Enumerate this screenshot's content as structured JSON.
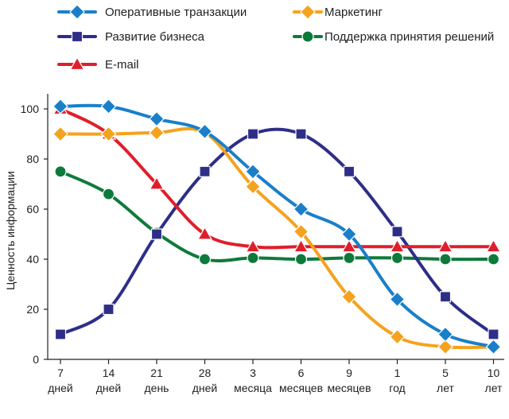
{
  "chart_data": {
    "type": "line",
    "title": "",
    "xlabel": "",
    "ylabel": "Ценность информации",
    "ylim": [
      0,
      100
    ],
    "yticks": [
      0,
      20,
      40,
      60,
      80,
      100
    ],
    "grid": false,
    "legend_position": "top",
    "categories": [
      [
        "7",
        "дней"
      ],
      [
        "14",
        "дней"
      ],
      [
        "21",
        "день"
      ],
      [
        "28",
        "дней"
      ],
      [
        "3",
        "месяца"
      ],
      [
        "6",
        "месяцев"
      ],
      [
        "9",
        "месяцев"
      ],
      [
        "1",
        "год"
      ],
      [
        "5",
        "лет"
      ],
      [
        "10",
        "лет"
      ]
    ],
    "series": [
      {
        "name": "Оперативные транзакции",
        "color": "#1a7fc9",
        "marker": "diamond",
        "values": [
          101,
          101,
          96,
          91,
          75,
          60,
          50,
          24,
          10,
          5
        ]
      },
      {
        "name": "Развитие бизнеса",
        "color": "#2e2e88",
        "marker": "square",
        "values": [
          10,
          20,
          50,
          75,
          90,
          90,
          75,
          51,
          25,
          10
        ]
      },
      {
        "name": "E-mail",
        "color": "#e01e2b",
        "marker": "triangle",
        "values": [
          100,
          90,
          70,
          50,
          45,
          45,
          45,
          45,
          45,
          45
        ]
      },
      {
        "name": "Маркетинг",
        "color": "#f5a21e",
        "marker": "diamond",
        "values": [
          90,
          90,
          90.5,
          90.5,
          69,
          51,
          25,
          9,
          5,
          5
        ]
      },
      {
        "name": "Поддержка принятия решений",
        "color": "#0e7a3a",
        "marker": "circle",
        "values": [
          75,
          66,
          50.5,
          40,
          40.5,
          40,
          40.5,
          40.5,
          40,
          40
        ]
      }
    ]
  }
}
